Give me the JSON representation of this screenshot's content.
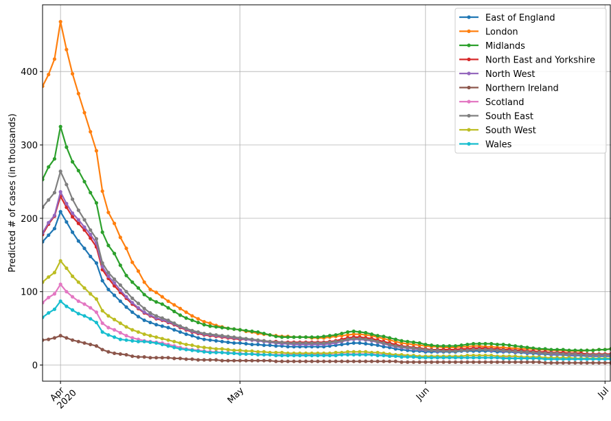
{
  "chart_data": {
    "type": "line",
    "ylabel": "Predicted # of cases (in thousands)",
    "x": [
      "2020-03-29",
      "2020-03-30",
      "2020-03-31",
      "2020-04-01",
      "2020-04-02",
      "2020-04-03",
      "2020-04-04",
      "2020-04-05",
      "2020-04-06",
      "2020-04-07",
      "2020-04-08",
      "2020-04-09",
      "2020-04-10",
      "2020-04-11",
      "2020-04-12",
      "2020-04-13",
      "2020-04-14",
      "2020-04-15",
      "2020-04-16",
      "2020-04-17",
      "2020-04-18",
      "2020-04-19",
      "2020-04-20",
      "2020-04-21",
      "2020-04-22",
      "2020-04-23",
      "2020-04-24",
      "2020-04-25",
      "2020-04-26",
      "2020-04-27",
      "2020-04-28",
      "2020-04-29",
      "2020-04-30",
      "2020-05-01",
      "2020-05-02",
      "2020-05-03",
      "2020-05-04",
      "2020-05-05",
      "2020-05-06",
      "2020-05-07",
      "2020-05-08",
      "2020-05-09",
      "2020-05-10",
      "2020-05-11",
      "2020-05-12",
      "2020-05-13",
      "2020-05-14",
      "2020-05-15",
      "2020-05-16",
      "2020-05-17",
      "2020-05-18",
      "2020-05-19",
      "2020-05-20",
      "2020-05-21",
      "2020-05-22",
      "2020-05-23",
      "2020-05-24",
      "2020-05-25",
      "2020-05-26",
      "2020-05-27",
      "2020-05-28",
      "2020-05-29",
      "2020-05-30",
      "2020-05-31",
      "2020-06-01",
      "2020-06-02",
      "2020-06-03",
      "2020-06-04",
      "2020-06-05",
      "2020-06-06",
      "2020-06-07",
      "2020-06-08",
      "2020-06-09",
      "2020-06-10",
      "2020-06-11",
      "2020-06-12",
      "2020-06-13",
      "2020-06-14",
      "2020-06-15",
      "2020-06-16",
      "2020-06-17",
      "2020-06-18",
      "2020-06-19",
      "2020-06-20",
      "2020-06-21",
      "2020-06-22",
      "2020-06-23",
      "2020-06-24",
      "2020-06-25",
      "2020-06-26",
      "2020-06-27",
      "2020-06-28",
      "2020-06-29",
      "2020-06-30",
      "2020-07-01",
      "2020-07-02"
    ],
    "xlim": [
      "2020-03-29",
      "2020-07-02"
    ],
    "xticks": [
      {
        "value": "2020-04-01",
        "label": "Apr 2020"
      },
      {
        "value": "2020-05-01",
        "label": "May"
      },
      {
        "value": "2020-06-01",
        "label": "Jun"
      },
      {
        "value": "2020-07-01",
        "label": "Jul"
      }
    ],
    "ylim": [
      -22,
      491
    ],
    "yticks": [
      0,
      100,
      200,
      300,
      400
    ],
    "grid": true,
    "legend": "upper right",
    "series": [
      {
        "name": "East of England",
        "color": "#1f77b4",
        "values": [
          168,
          177,
          186,
          209,
          195,
          181,
          169,
          159,
          148,
          139,
          115,
          103,
          95,
          87,
          79,
          72,
          66,
          61,
          58,
          55,
          53,
          51,
          48,
          45,
          42,
          40,
          37,
          35,
          34,
          33,
          32,
          31,
          30,
          30,
          29,
          28,
          28,
          27,
          27,
          26,
          26,
          25,
          25,
          25,
          25,
          25,
          25,
          25,
          26,
          27,
          28,
          29,
          30,
          30,
          29,
          28,
          27,
          25,
          24,
          22,
          21,
          20,
          19,
          19,
          18,
          18,
          18,
          18,
          18,
          18,
          19,
          19,
          19,
          19,
          19,
          19,
          18,
          18,
          18,
          17,
          17,
          16,
          16,
          15,
          15,
          14,
          14,
          14,
          13,
          13,
          13,
          12,
          12,
          12,
          12,
          12
        ]
      },
      {
        "name": "London",
        "color": "#ff7f0e",
        "values": [
          380,
          396,
          417,
          468,
          430,
          397,
          370,
          344,
          318,
          292,
          237,
          208,
          193,
          174,
          159,
          140,
          128,
          113,
          103,
          99,
          93,
          87,
          82,
          77,
          72,
          67,
          63,
          59,
          57,
          54,
          52,
          50,
          49,
          48,
          46,
          45,
          43,
          42,
          41,
          40,
          39,
          39,
          38,
          38,
          38,
          37,
          37,
          37,
          38,
          39,
          40,
          41,
          42,
          42,
          41,
          40,
          38,
          36,
          34,
          32,
          30,
          29,
          28,
          27,
          26,
          25,
          25,
          24,
          24,
          24,
          25,
          25,
          26,
          26,
          25,
          25,
          24,
          24,
          23,
          23,
          22,
          22,
          22,
          21,
          21,
          20,
          20,
          20,
          19,
          19,
          19,
          20,
          20,
          21,
          21,
          22
        ]
      },
      {
        "name": "Midlands",
        "color": "#2ca02c",
        "values": [
          253,
          270,
          281,
          325,
          297,
          277,
          265,
          250,
          235,
          221,
          181,
          163,
          152,
          136,
          122,
          113,
          105,
          96,
          90,
          86,
          83,
          78,
          73,
          68,
          64,
          61,
          58,
          55,
          53,
          52,
          51,
          50,
          49,
          48,
          47,
          46,
          45,
          43,
          41,
          39,
          38,
          38,
          38,
          38,
          38,
          38,
          38,
          39,
          40,
          41,
          43,
          45,
          46,
          45,
          44,
          42,
          40,
          39,
          37,
          35,
          33,
          32,
          31,
          30,
          28,
          27,
          26,
          26,
          26,
          26,
          27,
          28,
          29,
          29,
          29,
          29,
          28,
          28,
          27,
          26,
          25,
          24,
          23,
          22,
          22,
          21,
          21,
          21,
          20,
          20,
          20,
          20,
          20,
          21,
          21,
          22
        ]
      },
      {
        "name": "North East and Yorkshire",
        "color": "#d62728",
        "values": [
          178,
          192,
          203,
          230,
          215,
          202,
          193,
          184,
          173,
          161,
          130,
          118,
          108,
          99,
          91,
          83,
          77,
          71,
          67,
          63,
          61,
          58,
          55,
          51,
          48,
          45,
          43,
          41,
          40,
          39,
          38,
          37,
          36,
          35,
          35,
          34,
          33,
          33,
          32,
          32,
          31,
          31,
          31,
          31,
          31,
          31,
          31,
          31,
          32,
          33,
          35,
          37,
          38,
          38,
          37,
          36,
          34,
          32,
          30,
          28,
          26,
          25,
          24,
          23,
          22,
          21,
          21,
          21,
          21,
          21,
          22,
          22,
          23,
          23,
          23,
          22,
          22,
          21,
          21,
          20,
          20,
          19,
          19,
          18,
          18,
          17,
          17,
          17,
          16,
          16,
          16,
          15,
          15,
          15,
          15,
          15
        ]
      },
      {
        "name": "North West",
        "color": "#9467bd",
        "values": [
          180,
          194,
          204,
          236,
          220,
          207,
          198,
          188,
          178,
          166,
          134,
          121,
          112,
          102,
          93,
          85,
          78,
          72,
          68,
          64,
          62,
          59,
          56,
          52,
          49,
          46,
          44,
          42,
          41,
          40,
          39,
          38,
          37,
          36,
          35,
          34,
          33,
          32,
          31,
          30,
          29,
          29,
          28,
          28,
          28,
          28,
          28,
          28,
          29,
          30,
          32,
          34,
          35,
          35,
          34,
          33,
          31,
          29,
          27,
          25,
          24,
          23,
          22,
          21,
          20,
          20,
          19,
          19,
          19,
          19,
          20,
          20,
          21,
          21,
          21,
          20,
          20,
          19,
          19,
          18,
          18,
          17,
          17,
          16,
          16,
          15,
          15,
          15,
          14,
          14,
          14,
          13,
          13,
          13,
          13,
          13
        ]
      },
      {
        "name": "Northern Ireland",
        "color": "#8c564b",
        "values": [
          34,
          35,
          37,
          40,
          37,
          34,
          32,
          30,
          28,
          26,
          21,
          18,
          16,
          15,
          14,
          12,
          11,
          11,
          10,
          10,
          10,
          10,
          9,
          9,
          8,
          8,
          7,
          7,
          7,
          7,
          6,
          6,
          6,
          6,
          6,
          6,
          6,
          6,
          6,
          5,
          5,
          5,
          5,
          5,
          5,
          5,
          5,
          5,
          5,
          5,
          5,
          5,
          5,
          5,
          5,
          5,
          5,
          5,
          5,
          5,
          4,
          4,
          4,
          4,
          4,
          4,
          4,
          4,
          4,
          4,
          4,
          4,
          4,
          4,
          4,
          4,
          4,
          4,
          4,
          4,
          4,
          4,
          4,
          4,
          3,
          3,
          3,
          3,
          3,
          3,
          3,
          3,
          3,
          3,
          3,
          3
        ]
      },
      {
        "name": "Scotland",
        "color": "#e377c2",
        "values": [
          85,
          92,
          97,
          110,
          100,
          93,
          87,
          83,
          78,
          72,
          57,
          51,
          48,
          44,
          40,
          37,
          35,
          33,
          32,
          31,
          30,
          28,
          26,
          24,
          22,
          21,
          20,
          19,
          18,
          18,
          17,
          17,
          16,
          16,
          15,
          15,
          15,
          14,
          14,
          14,
          14,
          14,
          14,
          14,
          14,
          14,
          14,
          14,
          14,
          14,
          15,
          15,
          15,
          15,
          15,
          15,
          14,
          14,
          13,
          13,
          12,
          12,
          11,
          11,
          11,
          11,
          10,
          10,
          10,
          10,
          10,
          10,
          10,
          10,
          10,
          10,
          10,
          10,
          10,
          9,
          9,
          9,
          9,
          9,
          9,
          8,
          8,
          8,
          8,
          8,
          8,
          8,
          8,
          8,
          8,
          8
        ]
      },
      {
        "name": "South East",
        "color": "#7f7f7f",
        "values": [
          215,
          225,
          235,
          264,
          246,
          226,
          211,
          198,
          184,
          172,
          139,
          126,
          117,
          109,
          100,
          91,
          84,
          77,
          71,
          67,
          64,
          61,
          57,
          53,
          50,
          47,
          45,
          43,
          42,
          41,
          40,
          39,
          38,
          37,
          36,
          35,
          34,
          33,
          32,
          31,
          31,
          30,
          30,
          30,
          30,
          30,
          30,
          30,
          31,
          32,
          33,
          35,
          36,
          36,
          35,
          34,
          32,
          30,
          28,
          26,
          25,
          24,
          23,
          22,
          21,
          20,
          20,
          19,
          19,
          19,
          20,
          20,
          21,
          21,
          21,
          21,
          20,
          20,
          19,
          19,
          18,
          18,
          17,
          17,
          16,
          16,
          16,
          15,
          15,
          15,
          14,
          14,
          14,
          14,
          14,
          14
        ]
      },
      {
        "name": "South West",
        "color": "#bcbd22",
        "values": [
          113,
          120,
          126,
          142,
          132,
          121,
          113,
          105,
          97,
          90,
          74,
          67,
          62,
          57,
          52,
          48,
          45,
          42,
          40,
          38,
          36,
          34,
          32,
          30,
          28,
          27,
          25,
          24,
          23,
          22,
          22,
          21,
          20,
          20,
          19,
          19,
          18,
          18,
          17,
          17,
          17,
          16,
          16,
          16,
          16,
          16,
          16,
          16,
          16,
          17,
          17,
          18,
          18,
          18,
          18,
          17,
          17,
          16,
          15,
          14,
          14,
          13,
          13,
          12,
          12,
          12,
          12,
          12,
          12,
          12,
          12,
          13,
          13,
          13,
          13,
          13,
          12,
          12,
          12,
          12,
          11,
          11,
          11,
          11,
          10,
          10,
          10,
          10,
          10,
          9,
          9,
          9,
          9,
          9,
          9,
          9
        ]
      },
      {
        "name": "Wales",
        "color": "#17becf",
        "values": [
          65,
          71,
          76,
          87,
          80,
          75,
          70,
          67,
          63,
          58,
          45,
          41,
          38,
          35,
          34,
          33,
          32,
          32,
          31,
          30,
          28,
          26,
          24,
          22,
          21,
          20,
          19,
          18,
          17,
          17,
          17,
          16,
          16,
          15,
          15,
          15,
          14,
          14,
          14,
          13,
          13,
          13,
          13,
          13,
          13,
          13,
          13,
          13,
          13,
          13,
          14,
          14,
          14,
          14,
          14,
          14,
          13,
          13,
          12,
          12,
          11,
          11,
          11,
          10,
          10,
          10,
          10,
          10,
          10,
          10,
          10,
          10,
          10,
          10,
          10,
          10,
          10,
          9,
          9,
          9,
          9,
          9,
          9,
          9,
          8,
          8,
          8,
          8,
          8,
          8,
          8,
          8,
          8,
          8,
          8,
          8
        ]
      }
    ]
  }
}
